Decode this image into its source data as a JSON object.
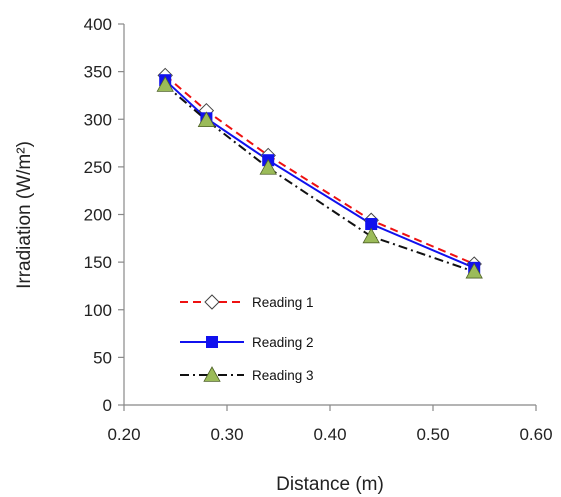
{
  "chart_data": {
    "type": "line",
    "xlabel": "Distance (m)",
    "ylabel": "Irradiation (W/m²)",
    "xlim": [
      0.2,
      0.6
    ],
    "ylim": [
      0,
      400
    ],
    "x_ticks": [
      0.2,
      0.3,
      0.4,
      0.5,
      0.6
    ],
    "x_tick_labels": [
      "0.20",
      "0.30",
      "0.40",
      "0.50",
      "0.60"
    ],
    "y_ticks": [
      0,
      50,
      100,
      150,
      200,
      250,
      300,
      350,
      400
    ],
    "y_tick_labels": [
      "0",
      "50",
      "100",
      "150",
      "200",
      "250",
      "300",
      "350",
      "400"
    ],
    "grid": false,
    "legend_position": "bottom-left",
    "series": [
      {
        "name": "Reading 1",
        "color": "#ee1111",
        "line_style": "dashed",
        "marker": "open-diamond",
        "x": [
          0.24,
          0.28,
          0.34,
          0.44,
          0.54
        ],
        "y": [
          346,
          309,
          262,
          194,
          148
        ]
      },
      {
        "name": "Reading 2",
        "color": "#1111ee",
        "line_style": "solid",
        "marker": "filled-square",
        "x": [
          0.24,
          0.28,
          0.34,
          0.44,
          0.54
        ],
        "y": [
          341,
          301,
          257,
          190,
          144
        ]
      },
      {
        "name": "Reading 3",
        "color": "#111111",
        "line_style": "dash-dot",
        "marker": "green-triangle",
        "x": [
          0.24,
          0.28,
          0.34,
          0.44,
          0.54
        ],
        "y": [
          336,
          299,
          249,
          177,
          140
        ]
      }
    ]
  }
}
